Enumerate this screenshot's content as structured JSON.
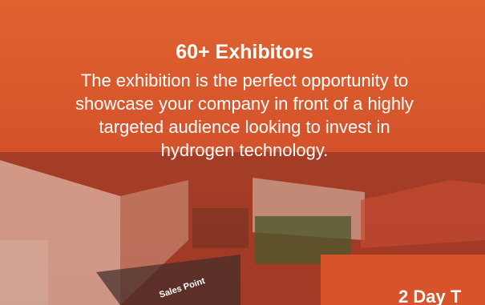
{
  "hero": {
    "title": "60+ Exhibitors",
    "description_lines": [
      "The exhibition is the perfect opportunity to",
      "showcase your company in front of a highly",
      "targeted audience looking to invest in",
      "hydrogen technology."
    ],
    "photo_sign": "Sales Point",
    "banner": "2 Day T"
  }
}
